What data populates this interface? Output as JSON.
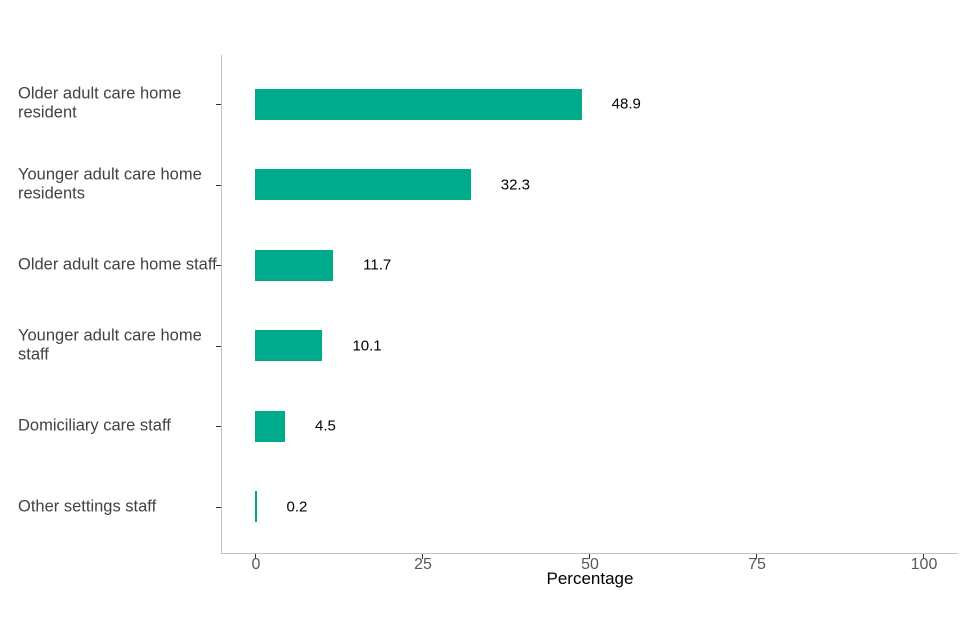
{
  "chart_data": {
    "type": "bar",
    "orientation": "horizontal",
    "title": "",
    "categories": [
      "Older adult care home resident",
      "Younger adult care home residents",
      "Older adult care home staff",
      "Younger adult care home staff",
      "Domiciliary care staff",
      "Other settings staff"
    ],
    "values": [
      48.9,
      32.3,
      11.7,
      10.1,
      4.5,
      0.2
    ],
    "value_labels": [
      "48.9",
      "32.3",
      "11.7",
      "10.1",
      "4.5",
      "0.2"
    ],
    "xlabel": "Percentage",
    "ylabel": "",
    "x_ticks": [
      0,
      25,
      50,
      75,
      100
    ],
    "xlim": [
      0,
      100
    ],
    "grid": "off",
    "legend": "none",
    "bar_color": "#00ab8c"
  },
  "colors": {
    "bar": "#00ab8c",
    "axis_line": "#c2c2c2",
    "tick_mark": "#333333",
    "tick_label": "#595959",
    "category_label": "#424242",
    "value_label": "#000000",
    "background": "#ffffff"
  }
}
